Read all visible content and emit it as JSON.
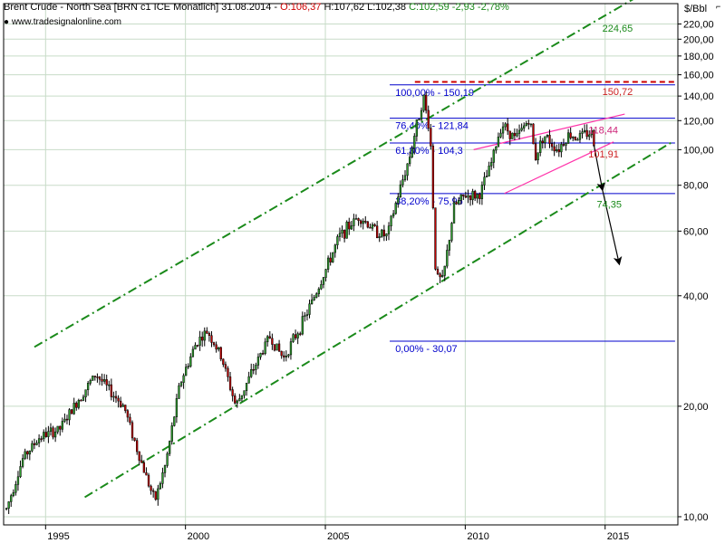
{
  "header": {
    "title": "Brent Crude - North Sea [BRN c1 ICE  Monatlich] 31.08.2014",
    "open": "O:106,37",
    "high": "H:107,62",
    "low": "L:102,38",
    "close": "C:102,59",
    "change": "-2,93",
    "change_pct": "-2,78%",
    "source": "www.tradesignalonline.com",
    "unit": "$/Bbl",
    "corner_mark": "⌐"
  },
  "colors": {
    "candle_up": "#2f9e2f",
    "candle_down": "#c00000",
    "channel": "#1a8a1a",
    "fib": "#0000cc",
    "wedge": "#ff33aa",
    "resistance": "#cc0000",
    "grid": "#c8dcc8",
    "target_green": "#1a8a1a",
    "target_red": "#cc2020",
    "target_pink": "#cc2277"
  },
  "chart_data": {
    "type": "candlestick",
    "title": "Brent Crude - North Sea [BRN c1 ICE  Monatlich] 31.08.2014",
    "y_scale": "log",
    "ylim": [
      9.5,
      250
    ],
    "xlim": [
      1993.5,
      2017.6
    ],
    "y_ticks": [
      {
        "v": 10,
        "label": "10,00"
      },
      {
        "v": 20,
        "label": "20,00"
      },
      {
        "v": 40,
        "label": "40,00"
      },
      {
        "v": 60,
        "label": "60,00"
      },
      {
        "v": 80,
        "label": "80,00"
      },
      {
        "v": 100,
        "label": "100,00"
      },
      {
        "v": 120,
        "label": "120,00"
      },
      {
        "v": 140,
        "label": "140,00"
      },
      {
        "v": 160,
        "label": "160,00"
      },
      {
        "v": 180,
        "label": "180,00"
      },
      {
        "v": 200,
        "label": "200,00"
      },
      {
        "v": 220,
        "label": "220,00"
      }
    ],
    "x_ticks": [
      {
        "v": 1995,
        "label": "1995"
      },
      {
        "v": 2000,
        "label": "2000"
      },
      {
        "v": 2005,
        "label": "2005"
      },
      {
        "v": 2010,
        "label": "2010"
      },
      {
        "v": 2015,
        "label": "2015"
      }
    ],
    "price_path": [
      [
        1993.6,
        10.5
      ],
      [
        1994.2,
        14.5
      ],
      [
        1994.8,
        16.5
      ],
      [
        1995.5,
        17.3
      ],
      [
        1996.2,
        21
      ],
      [
        1996.8,
        24.5
      ],
      [
        1997.3,
        22
      ],
      [
        1997.8,
        20
      ],
      [
        1998.3,
        15
      ],
      [
        1998.9,
        11
      ],
      [
        1999.3,
        14
      ],
      [
        1999.8,
        23
      ],
      [
        2000.4,
        30
      ],
      [
        2000.8,
        32
      ],
      [
        2001.3,
        27
      ],
      [
        2001.8,
        20
      ],
      [
        2002.4,
        25
      ],
      [
        2003.0,
        31
      ],
      [
        2003.5,
        27
      ],
      [
        2004.2,
        34
      ],
      [
        2004.8,
        43
      ],
      [
        2005.5,
        58
      ],
      [
        2006.2,
        66
      ],
      [
        2006.8,
        60
      ],
      [
        2007.2,
        58
      ],
      [
        2007.6,
        75
      ],
      [
        2008.0,
        95
      ],
      [
        2008.5,
        140
      ],
      [
        2008.75,
        110
      ],
      [
        2008.95,
        45
      ],
      [
        2009.2,
        44
      ],
      [
        2009.6,
        70
      ],
      [
        2010.0,
        75
      ],
      [
        2010.5,
        75
      ],
      [
        2010.9,
        90
      ],
      [
        2011.3,
        118
      ],
      [
        2011.8,
        107
      ],
      [
        2012.3,
        122
      ],
      [
        2012.5,
        95
      ],
      [
        2012.8,
        110
      ],
      [
        2013.3,
        100
      ],
      [
        2013.7,
        110
      ],
      [
        2014.0,
        108
      ],
      [
        2014.5,
        112
      ],
      [
        2014.62,
        102.6
      ]
    ],
    "channel_lines": [
      {
        "name": "upper",
        "points": [
          [
            1994.6,
            29
          ],
          [
            2016.3,
            265
          ]
        ]
      },
      {
        "name": "lower",
        "points": [
          [
            1996.4,
            11.3
          ],
          [
            2017.4,
            105
          ]
        ]
      }
    ],
    "wedge_lines": [
      {
        "name": "wedge-upper",
        "points": [
          [
            2010.3,
            100
          ],
          [
            2015.7,
            125
          ]
        ]
      },
      {
        "name": "wedge-lower",
        "points": [
          [
            2011.4,
            76
          ],
          [
            2015.3,
            105
          ]
        ]
      }
    ],
    "resistance_line": {
      "value": 153,
      "x_start": 2008.2,
      "x_end": 2017.5
    },
    "fib_levels": [
      {
        "value": 150.19,
        "label": "100,00% - 150,19"
      },
      {
        "value": 121.84,
        "label": "76,40% - 121,84"
      },
      {
        "value": 104.3,
        "label": "61,80% - 104,3"
      },
      {
        "value": 75.96,
        "label": "38,20% - 75,96"
      },
      {
        "value": 30.07,
        "label": "0,00% - 30,07"
      }
    ],
    "target_labels": [
      {
        "value": 224.65,
        "label": "224,65",
        "color": "green"
      },
      {
        "value": 150.72,
        "label": "150,72",
        "color": "red"
      },
      {
        "value": 118.44,
        "label": "118,44",
        "color": "pink"
      },
      {
        "value": 101.91,
        "label": "101,91",
        "color": "red"
      },
      {
        "value": 74.35,
        "label": "74,35",
        "color": "green"
      }
    ],
    "arrows": [
      {
        "from": [
          2014.6,
          103
        ],
        "to": [
          2014.9,
          78
        ]
      },
      {
        "from": [
          2014.9,
          78
        ],
        "to": [
          2015.5,
          49
        ]
      }
    ]
  }
}
